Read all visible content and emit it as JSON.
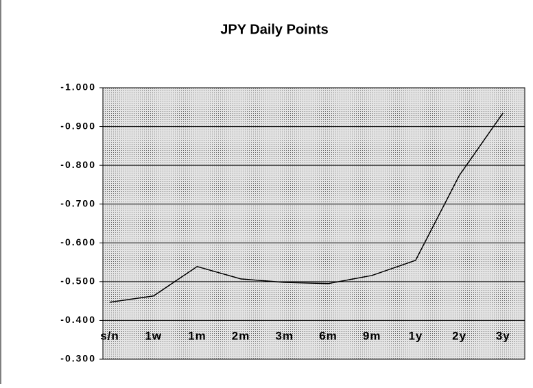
{
  "chart_data": {
    "type": "line",
    "title": "JPY Daily Points",
    "categories": [
      "s/n",
      "1w",
      "1m",
      "2m",
      "3m",
      "6m",
      "9m",
      "1y",
      "2y",
      "3y"
    ],
    "values": [
      -0.447,
      -0.463,
      -0.539,
      -0.507,
      -0.498,
      -0.495,
      -0.516,
      -0.555,
      -0.774,
      -0.935
    ],
    "color": "#000000",
    "ylim": [
      -0.3,
      -1.0
    ],
    "yticks": [
      {
        "value": -1.0,
        "label": "-1.000"
      },
      {
        "value": -0.9,
        "label": "-0.900"
      },
      {
        "value": -0.8,
        "label": "-0.800"
      },
      {
        "value": -0.7,
        "label": "-0.700"
      },
      {
        "value": -0.6,
        "label": "-0.600"
      },
      {
        "value": -0.5,
        "label": "-0.500"
      },
      {
        "value": -0.4,
        "label": "-0.400"
      },
      {
        "value": -0.3,
        "label": "-0.300"
      }
    ],
    "grid": true
  }
}
